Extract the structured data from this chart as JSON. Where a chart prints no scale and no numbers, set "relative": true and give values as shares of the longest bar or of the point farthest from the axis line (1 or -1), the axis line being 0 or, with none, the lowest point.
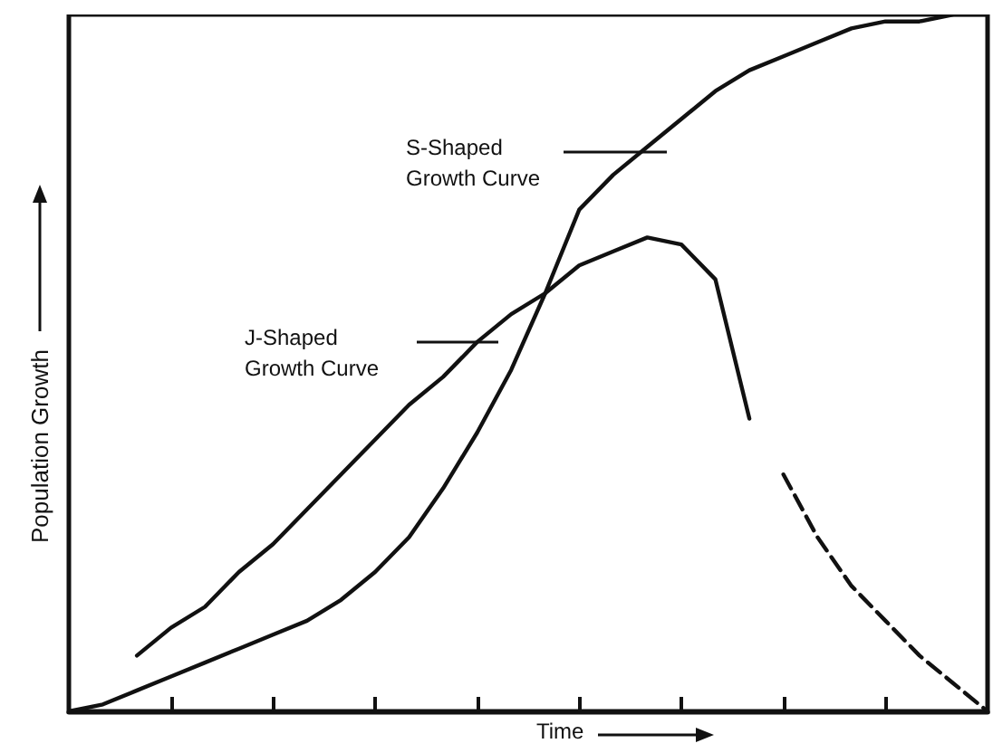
{
  "chart_data": {
    "type": "line",
    "relative": true,
    "xlabel": "Time",
    "ylabel": "Population Growth",
    "categories": [
      null,
      null,
      null,
      null,
      null,
      null,
      null,
      null,
      null,
      null,
      null,
      null,
      null,
      null,
      null,
      null,
      null,
      null,
      null,
      null,
      null,
      null,
      null,
      null,
      null,
      null,
      null,
      null
    ],
    "series": [
      {
        "color": "#111111",
        "values": [
          0,
          0.01,
          0.03,
          0.05,
          0.07,
          0.09,
          0.11,
          0.13,
          0.16,
          0.2,
          0.25,
          0.32,
          0.4,
          0.49,
          0.6,
          0.72,
          0.77,
          0.81,
          0.85,
          0.89,
          0.92,
          0.94,
          0.96,
          0.98,
          0.99,
          0.99,
          1.0,
          1.0
        ]
      },
      {
        "color": "#111111",
        "values": [
          null,
          null,
          0.08,
          0.12,
          0.15,
          0.2,
          0.24,
          0.29,
          0.34,
          0.39,
          0.44,
          0.48,
          0.53,
          0.57,
          0.6,
          0.64,
          0.66,
          0.68,
          0.67,
          0.62,
          0.42,
          null,
          null,
          null,
          null,
          null,
          null,
          null
        ]
      },
      {
        "color": "#111111",
        "line_style": "dashed",
        "values": [
          null,
          null,
          null,
          null,
          null,
          null,
          null,
          null,
          null,
          null,
          null,
          null,
          null,
          null,
          null,
          null,
          null,
          null,
          null,
          null,
          null,
          0.34,
          0.25,
          0.18,
          0.13,
          0.08,
          0.04,
          0
        ]
      }
    ],
    "annotations": [
      "S-Shaped\nGrowth Curve",
      "J-Shaped\nGrowth Curve"
    ],
    "line_style": "solid",
    "marker": "none",
    "grid": false
  }
}
